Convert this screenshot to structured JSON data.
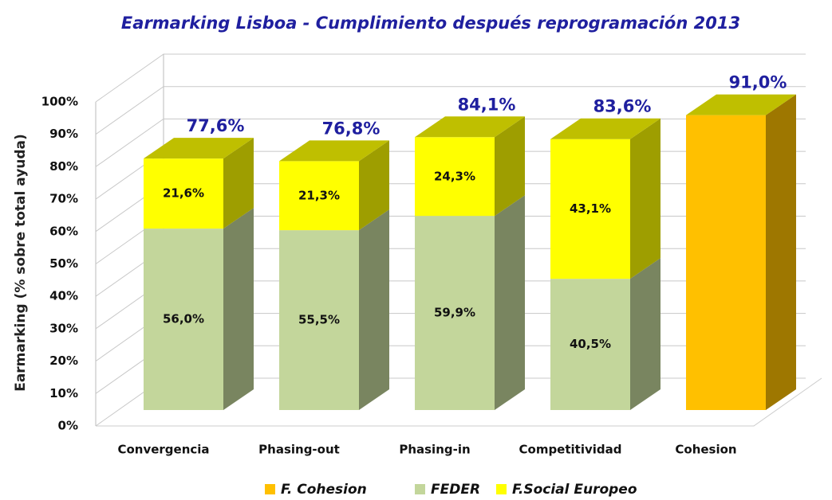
{
  "chart_data": {
    "type": "bar3d_stacked",
    "title": "Earmarking Lisboa - Cumplimiento después reprogramación 2013",
    "y_label": "Earmarking (% sobre total ayuda)",
    "categories": [
      "Convergencia",
      "Phasing-out",
      "Phasing-in",
      "Competitividad",
      "Cohesion"
    ],
    "series": [
      {
        "name": "F. Cohesion",
        "color": "#FFC000",
        "values": [
          null,
          null,
          null,
          null,
          91.0
        ]
      },
      {
        "name": "FEDER",
        "color": "#C3D69B",
        "values": [
          56.0,
          55.5,
          59.9,
          40.5,
          null
        ],
        "value_labels": [
          "56,0%",
          "55,5%",
          "59,9%",
          "40,5%",
          null
        ]
      },
      {
        "name": "F.Social Europeo",
        "color": "#FFFF00",
        "values": [
          21.6,
          21.3,
          24.3,
          43.1,
          null
        ],
        "value_labels": [
          "21,6%",
          "21,3%",
          "24,3%",
          "43,1%",
          null
        ]
      }
    ],
    "stack_order": [
      1,
      2,
      0
    ],
    "totals": [
      77.6,
      76.8,
      84.1,
      83.6,
      91.0
    ],
    "total_labels": [
      "77,6%",
      "76,8%",
      "84,1%",
      "83,6%",
      "91,0%"
    ],
    "ylim": [
      0,
      100
    ],
    "yticks": [
      {
        "value": 0,
        "label": "0%"
      },
      {
        "value": 10,
        "label": "10%"
      },
      {
        "value": 20,
        "label": "20%"
      },
      {
        "value": 30,
        "label": "30%"
      },
      {
        "value": 40,
        "label": "40%"
      },
      {
        "value": 50,
        "label": "50%"
      },
      {
        "value": 60,
        "label": "60%"
      },
      {
        "value": 70,
        "label": "70%"
      },
      {
        "value": 80,
        "label": "80%"
      },
      {
        "value": 90,
        "label": "90%"
      },
      {
        "value": 100,
        "label": "100%"
      }
    ],
    "grid": true,
    "legend": "bottom"
  }
}
